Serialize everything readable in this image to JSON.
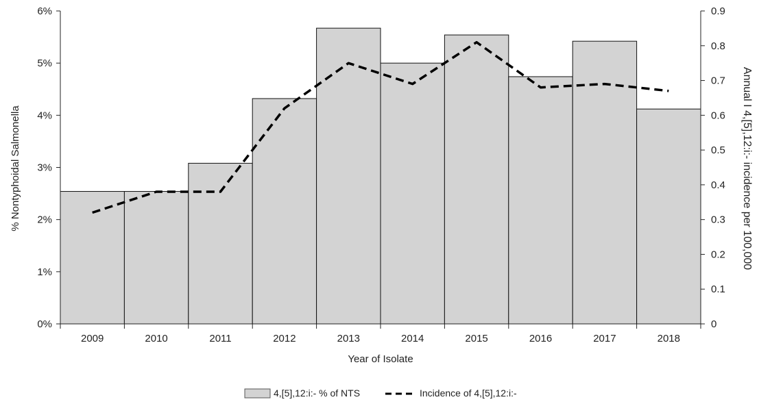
{
  "chart_data": {
    "type": "bar",
    "categories": [
      "2009",
      "2010",
      "2011",
      "2012",
      "2013",
      "2014",
      "2015",
      "2016",
      "2017",
      "2018"
    ],
    "series": [
      {
        "name": "4,[5],12:i:- % of NTS",
        "type": "bar",
        "axis": "left",
        "values": [
          2.54,
          2.54,
          3.08,
          4.32,
          5.67,
          5.0,
          5.54,
          4.74,
          5.42,
          4.12
        ],
        "color": "#d3d3d3"
      },
      {
        "name": "Incidence of 4,[5],12:i:-",
        "type": "line",
        "style": "dashed",
        "axis": "right",
        "values": [
          0.32,
          0.38,
          0.38,
          0.62,
          0.75,
          0.69,
          0.81,
          0.68,
          0.69,
          0.67
        ],
        "color": "#000000"
      }
    ],
    "xlabel": "Year of Isolate",
    "ylabel": "% Nontyphoidal Salmonella",
    "y2label": "Annual I 4,[5],12:i:- incidence per 100,000",
    "ylim": [
      0,
      6
    ],
    "y2lim": [
      0,
      0.9
    ],
    "yticks": [
      "0%",
      "1%",
      "2%",
      "3%",
      "4%",
      "5%",
      "6%"
    ],
    "y2ticks": [
      "0",
      "0.1",
      "0.2",
      "0.3",
      "0.4",
      "0.5",
      "0.6",
      "0.7",
      "0.8",
      "0.9"
    ],
    "grid": false,
    "legend": "bottom-center"
  }
}
